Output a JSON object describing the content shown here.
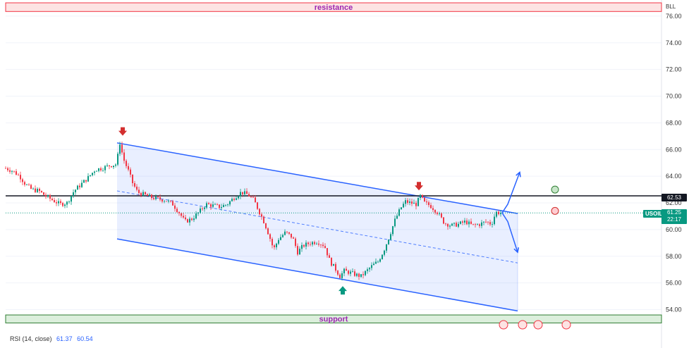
{
  "chart_data": {
    "type": "candlestick",
    "symbol": "USOIL",
    "unit_label": "BLL",
    "last_price": "61.25",
    "countdown": "22:17",
    "level_label": "62.53",
    "level_value": 62.53,
    "ylim": [
      52.6,
      77.0
    ],
    "y_ticks": [
      54.0,
      56.0,
      58.0,
      60.0,
      62.0,
      64.0,
      66.0,
      68.0,
      70.0,
      72.0,
      74.0,
      76.0
    ],
    "y_tick_labels": [
      "54.00",
      "56.00",
      "58.00",
      "60.00",
      "62.00",
      "64.00",
      "66.00",
      "68.00",
      "70.00",
      "72.00",
      "74.00",
      "76.00"
    ],
    "resistance": {
      "label": "resistance",
      "low": 76.35,
      "high": 77.0
    },
    "support": {
      "label": "support",
      "low": 53.0,
      "high": 53.6
    },
    "channel": {
      "upper": [
        [
          166,
          66.5
        ],
        [
          734,
          61.2
        ]
      ],
      "mid": [
        [
          166,
          62.9
        ],
        [
          734,
          57.5
        ]
      ],
      "lower": [
        [
          166,
          59.3
        ],
        [
          734,
          53.9
        ]
      ]
    },
    "prices": [
      [
        8,
        64.6
      ],
      [
        18,
        64.4
      ],
      [
        28,
        64.0
      ],
      [
        36,
        63.4
      ],
      [
        45,
        63.0
      ],
      [
        55,
        62.9
      ],
      [
        65,
        62.5
      ],
      [
        75,
        62.2
      ],
      [
        85,
        61.9
      ],
      [
        95,
        62.0
      ],
      [
        105,
        62.9
      ],
      [
        115,
        63.4
      ],
      [
        125,
        63.9
      ],
      [
        135,
        64.5
      ],
      [
        145,
        64.6
      ],
      [
        155,
        64.8
      ],
      [
        165,
        64.9
      ],
      [
        170,
        66.5
      ],
      [
        175,
        65.3
      ],
      [
        182,
        64.4
      ],
      [
        188,
        63.5
      ],
      [
        195,
        62.8
      ],
      [
        205,
        62.6
      ],
      [
        215,
        62.4
      ],
      [
        225,
        62.3
      ],
      [
        235,
        62.2
      ],
      [
        245,
        61.9
      ],
      [
        255,
        61.2
      ],
      [
        262,
        60.6
      ],
      [
        272,
        60.8
      ],
      [
        282,
        61.3
      ],
      [
        292,
        61.9
      ],
      [
        302,
        61.8
      ],
      [
        312,
        61.7
      ],
      [
        322,
        61.9
      ],
      [
        332,
        62.4
      ],
      [
        342,
        62.8
      ],
      [
        352,
        62.6
      ],
      [
        360,
        62.2
      ],
      [
        368,
        61.3
      ],
      [
        375,
        60.5
      ],
      [
        382,
        59.5
      ],
      [
        388,
        58.5
      ],
      [
        395,
        59.3
      ],
      [
        405,
        59.8
      ],
      [
        415,
        59.4
      ],
      [
        422,
        58.3
      ],
      [
        430,
        58.8
      ],
      [
        440,
        59.0
      ],
      [
        450,
        59.1
      ],
      [
        460,
        58.8
      ],
      [
        468,
        57.6
      ],
      [
        475,
        57.1
      ],
      [
        482,
        56.5
      ],
      [
        488,
        56.9
      ],
      [
        495,
        56.8
      ],
      [
        505,
        56.6
      ],
      [
        512,
        56.5
      ],
      [
        520,
        56.9
      ],
      [
        528,
        57.3
      ],
      [
        536,
        57.6
      ],
      [
        544,
        58.4
      ],
      [
        552,
        59.5
      ],
      [
        560,
        60.7
      ],
      [
        568,
        61.6
      ],
      [
        575,
        62.1
      ],
      [
        582,
        62.0
      ],
      [
        590,
        61.9
      ],
      [
        596,
        62.5
      ],
      [
        602,
        62.0
      ],
      [
        610,
        61.8
      ],
      [
        620,
        61.3
      ],
      [
        630,
        60.5
      ],
      [
        640,
        60.3
      ],
      [
        650,
        60.4
      ],
      [
        660,
        60.6
      ],
      [
        670,
        60.3
      ],
      [
        680,
        60.4
      ],
      [
        690,
        60.6
      ],
      [
        697,
        60.4
      ],
      [
        703,
        61.3
      ],
      [
        710,
        61.25
      ]
    ],
    "markers": {
      "down": [
        [
          174,
          67.3
        ],
        [
          594,
          63.2
        ]
      ],
      "up": [
        [
          486,
          55.5
        ]
      ]
    },
    "projection": {
      "origin": [
        712,
        61.25
      ],
      "up": [
        [
          720,
          61.9
        ],
        [
          737,
          64.3
        ]
      ],
      "down": [
        [
          720,
          60.6
        ],
        [
          734,
          58.3
        ]
      ]
    },
    "circles": {
      "green": [
        787,
        63.0
      ],
      "red": [
        787,
        61.4
      ]
    },
    "rsi": {
      "label": "RSI (14, close)",
      "value1": "61.37",
      "value2": "60.54"
    }
  }
}
